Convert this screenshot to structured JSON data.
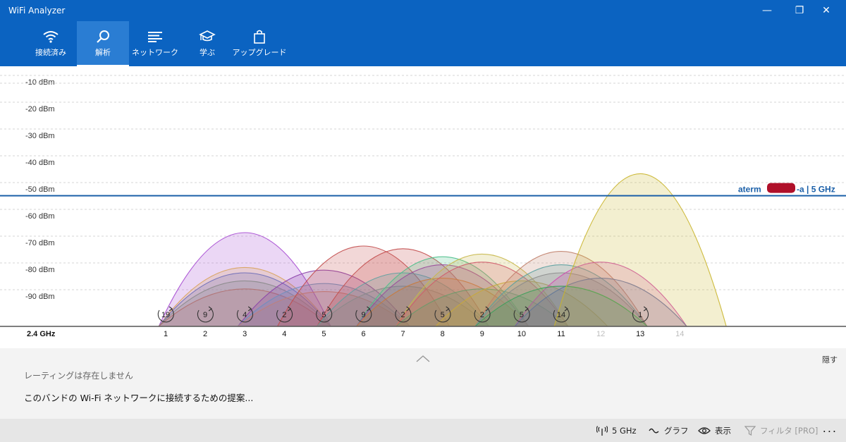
{
  "window": {
    "title": "WiFi Analyzer",
    "controls": {
      "minimize": "—",
      "restore": "❐",
      "close": "✕"
    }
  },
  "tabs": [
    {
      "label": "接続済み",
      "icon": "wifi-icon"
    },
    {
      "label": "解析",
      "icon": "magnify-icon",
      "active": true
    },
    {
      "label": "ネットワーク",
      "icon": "list-icon"
    },
    {
      "label": "学ぶ",
      "icon": "graduation-cap-icon"
    },
    {
      "label": "アップグレード",
      "icon": "shopping-bag-icon"
    }
  ],
  "chart_data": {
    "type": "area",
    "band_label": "2.4 GHz",
    "y_ticks": [
      "-10 dBm",
      "-20 dBm",
      "-30 dBm",
      "-40 dBm",
      "-50 dBm",
      "-60 dBm",
      "-70 dBm",
      "-80 dBm",
      "-90 dBm"
    ],
    "ylim": [
      -100,
      -5
    ],
    "x_channels": [
      1,
      2,
      3,
      4,
      5,
      6,
      7,
      8,
      9,
      10,
      11,
      12,
      13,
      14
    ],
    "x_channels_dim": [
      12,
      14
    ],
    "grid": true,
    "reference_line": {
      "label": "aterm",
      "label_suffix": "-a | 5 GHz",
      "dbm": -47,
      "color": "#1a5fa8"
    },
    "channel_counts": [
      {
        "channel": 1,
        "count": "19"
      },
      {
        "channel": 2,
        "count": "9"
      },
      {
        "channel": 3,
        "count": "4"
      },
      {
        "channel": 4,
        "count": "2"
      },
      {
        "channel": 5,
        "count": "5"
      },
      {
        "channel": 6,
        "count": "9"
      },
      {
        "channel": 7,
        "count": "2"
      },
      {
        "channel": 8,
        "count": "5"
      },
      {
        "channel": 9,
        "count": "2"
      },
      {
        "channel": 10,
        "count": "5"
      },
      {
        "channel": 11,
        "count": "14"
      },
      {
        "channel": 13,
        "count": "1"
      }
    ],
    "networks": [
      {
        "center": 3,
        "dbm": -65,
        "color": "#a64ad2"
      },
      {
        "center": 3,
        "dbm": -78,
        "color": "#d8a25a"
      },
      {
        "center": 3,
        "dbm": -80,
        "color": "#6a6ab8"
      },
      {
        "center": 3,
        "dbm": -83,
        "color": "#8a8a8a"
      },
      {
        "center": 3,
        "dbm": -86,
        "color": "#b07070"
      },
      {
        "center": 5,
        "dbm": -79,
        "color": "#8a3fa8"
      },
      {
        "center": 5,
        "dbm": -84,
        "color": "#6e8fbf"
      },
      {
        "center": 5,
        "dbm": -87,
        "color": "#c0807a"
      },
      {
        "center": 6,
        "dbm": -70,
        "color": "#c24b4b"
      },
      {
        "center": 7,
        "dbm": -71,
        "color": "#c24b4b"
      },
      {
        "center": 7,
        "dbm": -80,
        "color": "#5aa0a0"
      },
      {
        "center": 7,
        "dbm": -85,
        "color": "#8a8a8a"
      },
      {
        "center": 8,
        "dbm": -74,
        "color": "#4abf8a"
      },
      {
        "center": 8,
        "dbm": -77,
        "color": "#9a4a9a"
      },
      {
        "center": 8,
        "dbm": -82,
        "color": "#c97a3a"
      },
      {
        "center": 9,
        "dbm": -73,
        "color": "#c8b84a"
      },
      {
        "center": 9,
        "dbm": -76,
        "color": "#d05a6a"
      },
      {
        "center": 9,
        "dbm": -86,
        "color": "#6a9a6a"
      },
      {
        "center": 10,
        "dbm": -83,
        "color": "#c9a83a"
      },
      {
        "center": 11,
        "dbm": -72,
        "color": "#c0806a"
      },
      {
        "center": 11,
        "dbm": -77,
        "color": "#5aa0a0"
      },
      {
        "center": 11,
        "dbm": -80,
        "color": "#8a8a8a"
      },
      {
        "center": 12,
        "dbm": -76,
        "color": "#d14ab0"
      },
      {
        "center": 12,
        "dbm": -82,
        "color": "#6a6aaa"
      },
      {
        "center": 11,
        "dbm": -85,
        "color": "#3aa05a"
      },
      {
        "center": 13,
        "dbm": -43,
        "color": "#c9b42a"
      }
    ]
  },
  "panel": {
    "rating": "レーティングは存在しません",
    "suggestion": "このバンドの Wi-Fi ネットワークに接続するための提案...",
    "hide": "隠す"
  },
  "toolbar": {
    "band": "5 GHz",
    "graph": "グラフ",
    "view": "表示",
    "filter": "フィルタ [PRO]",
    "more": "..."
  }
}
